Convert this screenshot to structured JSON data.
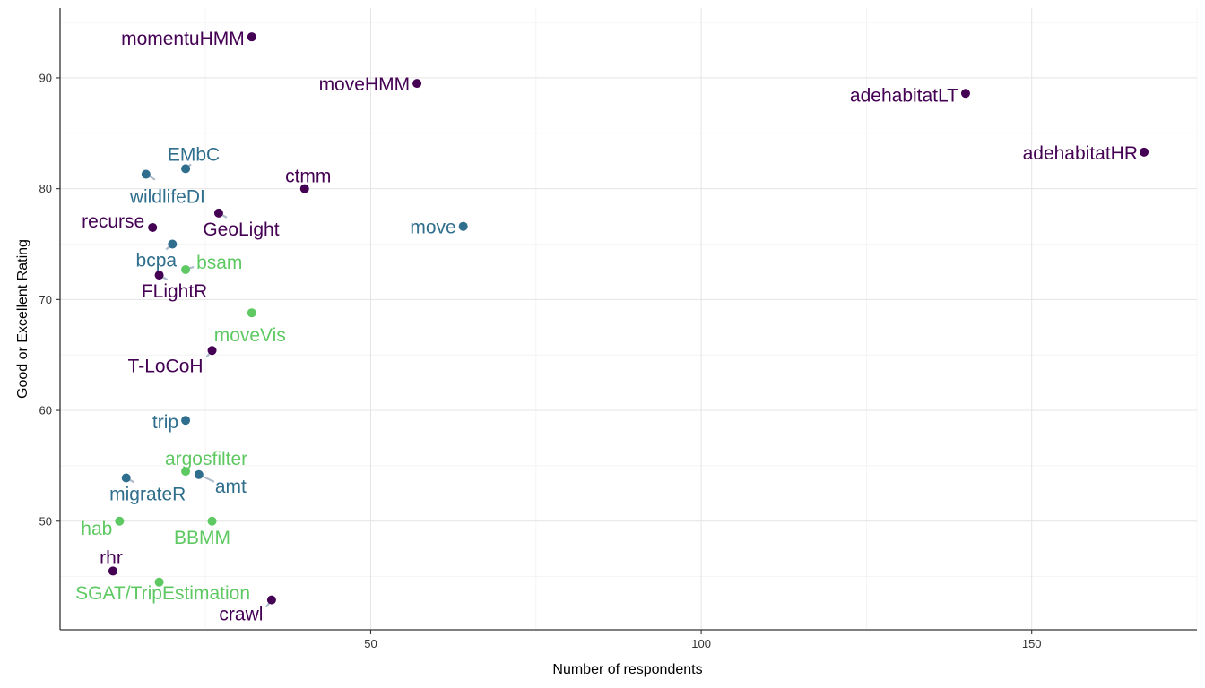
{
  "chart_data": {
    "type": "scatter",
    "title": "",
    "xlabel": "Number of respondents",
    "ylabel": "Good or Excellent Rating",
    "xlim": [
      3,
      175
    ],
    "ylim": [
      40.2,
      96.3
    ],
    "x_ticks": [
      50,
      100,
      150
    ],
    "y_ticks": [
      50,
      60,
      70,
      80,
      90
    ],
    "x_tick_labels": [
      "50",
      "100",
      "150"
    ],
    "y_tick_labels": [
      "50",
      "60",
      "70",
      "80",
      "90"
    ],
    "grid": true,
    "legend": "none",
    "colors": {
      "dark": "#440154",
      "mid": "#2f6e8c",
      "light": "#5ec962",
      "connector": "#b0bccb"
    },
    "points": [
      {
        "label": "momentuHMM",
        "x": 32,
        "y": 93.7,
        "group": "dark"
      },
      {
        "label": "moveHMM",
        "x": 57,
        "y": 89.5,
        "group": "dark"
      },
      {
        "label": "adehabitatLT",
        "x": 140,
        "y": 88.6,
        "group": "dark"
      },
      {
        "label": "adehabitatHR",
        "x": 167,
        "y": 83.3,
        "group": "dark"
      },
      {
        "label": "ctmm",
        "x": 40,
        "y": 80.0,
        "group": "dark"
      },
      {
        "label": "EMbC",
        "x": 22,
        "y": 81.8,
        "group": "mid"
      },
      {
        "label": "wildlifeDI",
        "x": 16,
        "y": 81.3,
        "group": "mid"
      },
      {
        "label": "GeoLight",
        "x": 27,
        "y": 77.8,
        "group": "dark"
      },
      {
        "label": "recurse",
        "x": 17,
        "y": 76.5,
        "group": "dark"
      },
      {
        "label": "move",
        "x": 64,
        "y": 76.6,
        "group": "mid"
      },
      {
        "label": "bcpa",
        "x": 20,
        "y": 75.0,
        "group": "mid"
      },
      {
        "label": "bsam",
        "x": 22,
        "y": 72.7,
        "group": "light"
      },
      {
        "label": "FLightR",
        "x": 18,
        "y": 72.2,
        "group": "dark"
      },
      {
        "label": "moveVis",
        "x": 32,
        "y": 68.8,
        "group": "light"
      },
      {
        "label": "T-LoCoH",
        "x": 26,
        "y": 65.4,
        "group": "dark"
      },
      {
        "label": "trip",
        "x": 22,
        "y": 59.1,
        "group": "mid"
      },
      {
        "label": "argosfilter",
        "x": 22,
        "y": 54.5,
        "group": "light"
      },
      {
        "label": "amt",
        "x": 24,
        "y": 54.2,
        "group": "mid"
      },
      {
        "label": "migrateR",
        "x": 13,
        "y": 53.9,
        "group": "mid"
      },
      {
        "label": "hab",
        "x": 12,
        "y": 50.0,
        "group": "light"
      },
      {
        "label": "BBMM",
        "x": 26,
        "y": 50.0,
        "group": "light"
      },
      {
        "label": "rhr",
        "x": 11,
        "y": 45.5,
        "group": "dark"
      },
      {
        "label": "SGAT/TripEstimation",
        "x": 18,
        "y": 44.5,
        "group": "light"
      },
      {
        "label": "crawl",
        "x": 35,
        "y": 42.9,
        "group": "dark"
      }
    ]
  }
}
